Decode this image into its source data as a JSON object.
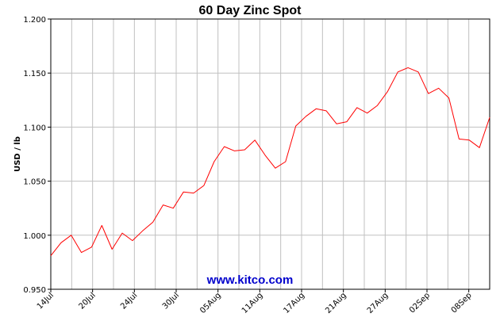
{
  "chart_data": {
    "type": "line",
    "title": "60 Day Zinc Spot",
    "ylabel": "USD / lb",
    "xlabel": "",
    "ylim": [
      0.95,
      1.2
    ],
    "grid": true,
    "y_ticks": [
      "0.950",
      "1.000",
      "1.050",
      "1.100",
      "1.150",
      "1.200"
    ],
    "x_ticks": [
      "14Jul",
      "20Jul",
      "24Jul",
      "30Jul",
      "05Aug",
      "11Aug",
      "17Aug",
      "21Aug",
      "27Aug",
      "02Sep",
      "08Sep"
    ],
    "series": [
      {
        "color": "#ff0000",
        "values": [
          0.981,
          0.993,
          1.0,
          0.984,
          0.989,
          1.009,
          0.987,
          1.002,
          0.995,
          1.004,
          1.012,
          1.028,
          1.025,
          1.04,
          1.039,
          1.046,
          1.068,
          1.082,
          1.078,
          1.079,
          1.088,
          1.074,
          1.062,
          1.068,
          1.101,
          1.11,
          1.117,
          1.115,
          1.103,
          1.105,
          1.118,
          1.113,
          1.12,
          1.133,
          1.151,
          1.155,
          1.151,
          1.131,
          1.136,
          1.127,
          1.089,
          1.088,
          1.081,
          1.109
        ]
      }
    ]
  },
  "watermark": "www.kitco.com",
  "colors": {
    "line": "#ff0000",
    "grid": "#c0c0c0",
    "watermark": "#0000cc"
  }
}
